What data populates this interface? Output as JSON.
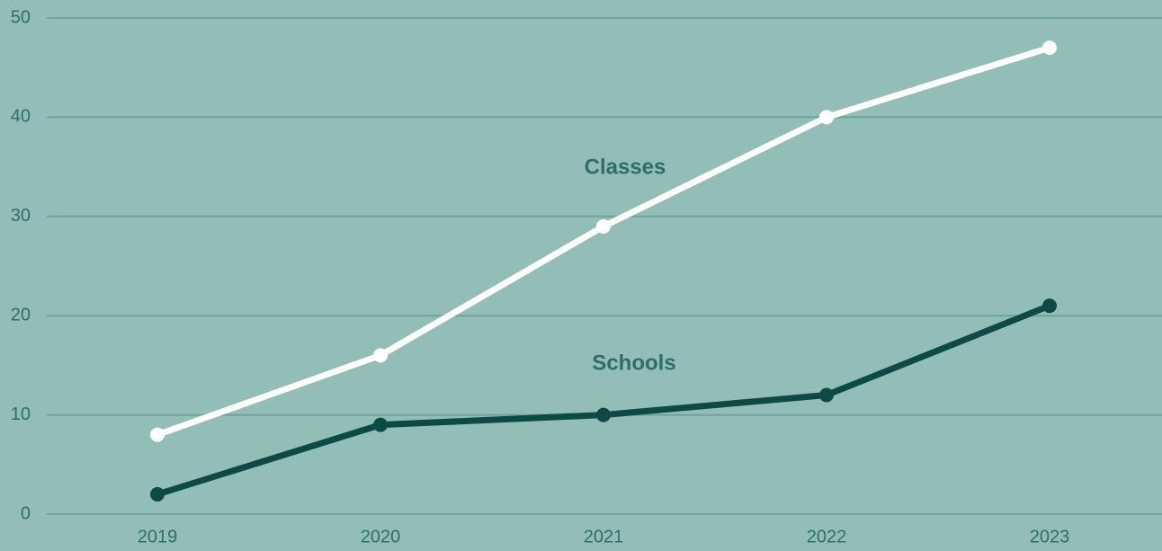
{
  "chart_data": {
    "type": "line",
    "categories": [
      "2019",
      "2020",
      "2021",
      "2022",
      "2023"
    ],
    "series": [
      {
        "name": "Classes",
        "color": "#ffffff",
        "values": [
          8,
          16,
          29,
          40,
          47
        ]
      },
      {
        "name": "Schools",
        "color": "#0e4a45",
        "values": [
          2,
          9,
          10,
          12,
          21
        ]
      }
    ],
    "ylim": [
      0,
      50
    ],
    "yticks": [
      0,
      10,
      20,
      30,
      40,
      50
    ],
    "grid": true
  }
}
